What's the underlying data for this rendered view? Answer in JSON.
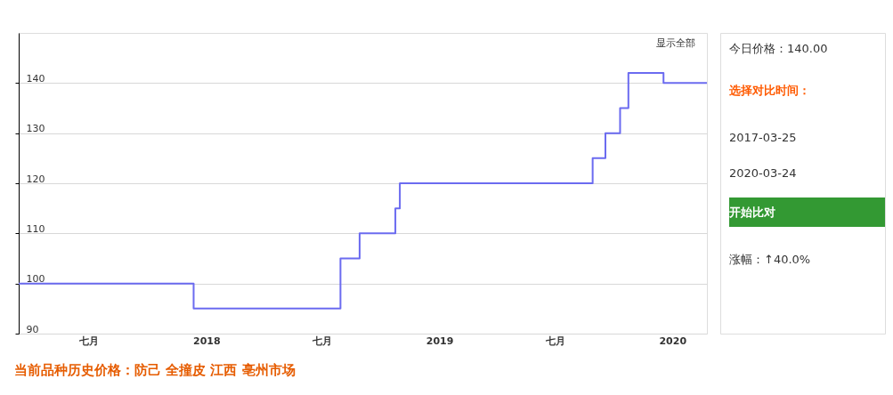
{
  "chart_data": {
    "type": "step",
    "title": "当前品种历史价格：防己 全撞皮 江西 亳州市场",
    "x": [
      "2017-03-13",
      "2017-12-12",
      "2018-07-30",
      "2018-08-29",
      "2018-10-24",
      "2018-10-31",
      "2019-08-29",
      "2019-09-18",
      "2019-10-11",
      "2019-10-24",
      "2019-12-18",
      "2020-02-24"
    ],
    "series": [
      {
        "color": "#6b6bf0",
        "values": [
          100,
          95,
          105,
          110,
          115,
          120,
          125,
          130,
          135,
          142,
          140,
          140
        ]
      }
    ],
    "xlim": [
      "2017-03-13",
      "2020-02-24"
    ],
    "xticks": [
      {
        "value": "2017-07-01",
        "label": "七月"
      },
      {
        "value": "2018-01-01",
        "label": "2018"
      },
      {
        "value": "2018-07-01",
        "label": "七月"
      },
      {
        "value": "2019-01-01",
        "label": "2019"
      },
      {
        "value": "2019-07-01",
        "label": "七月"
      },
      {
        "value": "2020-01-01",
        "label": "2020"
      }
    ],
    "ylim": [
      90,
      150
    ],
    "yticks": [
      90,
      100,
      110,
      120,
      130,
      140
    ],
    "grid": "y",
    "legend": false,
    "annotations": [
      "显示全部",
      "今日价格：140.00",
      "选择对比时间：",
      "2017-03-25",
      "2020-03-24",
      "开始比对",
      "涨幅：↑40.0%"
    ]
  }
}
